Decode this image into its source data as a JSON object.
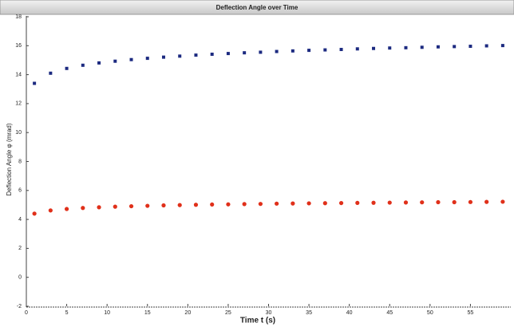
{
  "chart_data": {
    "type": "scatter",
    "title": "Deflection Angle over Time",
    "xlabel": "Time t (s)",
    "ylabel": "Deflection Angle φ (mrad)",
    "x": [
      1,
      3,
      5,
      7,
      9,
      11,
      13,
      15,
      17,
      19,
      21,
      23,
      25,
      27,
      29,
      31,
      33,
      35,
      37,
      39,
      41,
      43,
      45,
      47,
      49,
      51,
      53,
      55,
      57,
      59
    ],
    "series": [
      {
        "color": "#1c2a80",
        "values": [
          13.4,
          14.1,
          14.43,
          14.65,
          14.81,
          14.93,
          15.04,
          15.13,
          15.21,
          15.28,
          15.35,
          15.41,
          15.46,
          15.51,
          15.55,
          15.6,
          15.64,
          15.68,
          15.71,
          15.74,
          15.78,
          15.81,
          15.84,
          15.86,
          15.89,
          15.92,
          15.94,
          15.96,
          15.99,
          16.01
        ]
      },
      {
        "color": "#e0301a",
        "values": [
          4.4,
          4.62,
          4.72,
          4.79,
          4.84,
          4.88,
          4.91,
          4.94,
          4.97,
          4.99,
          5.01,
          5.03,
          5.04,
          5.06,
          5.07,
          5.09,
          5.1,
          5.11,
          5.12,
          5.13,
          5.14,
          5.15,
          5.16,
          5.17,
          5.18,
          5.19,
          5.19,
          5.2,
          5.21,
          5.22
        ]
      }
    ],
    "xlim": [
      0,
      60
    ],
    "xticks": [
      0,
      5,
      10,
      15,
      20,
      25,
      30,
      35,
      40,
      45,
      50,
      55
    ],
    "ylim": [
      -2,
      18
    ],
    "yticks": [
      -2,
      0,
      2,
      4,
      6,
      8,
      10,
      12,
      14,
      16,
      18
    ]
  }
}
